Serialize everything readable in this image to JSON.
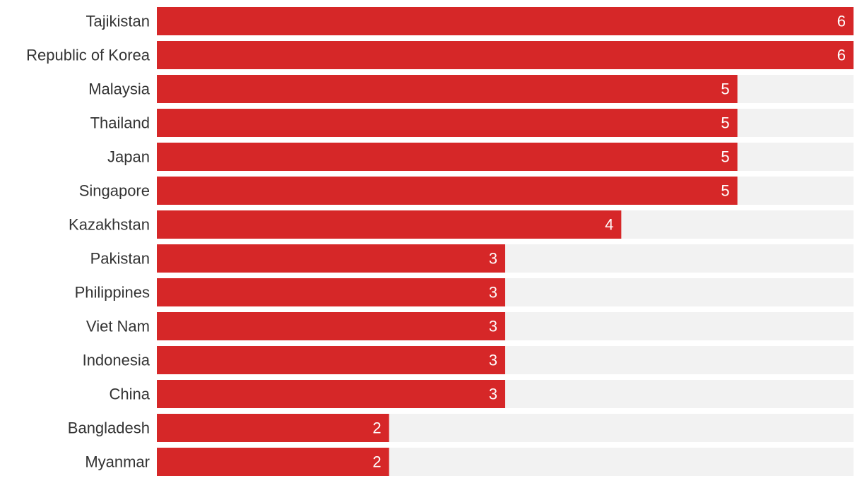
{
  "chart_data": {
    "type": "bar",
    "orientation": "horizontal",
    "categories": [
      "Tajikistan",
      "Republic of Korea",
      "Malaysia",
      "Thailand",
      "Japan",
      "Singapore",
      "Kazakhstan",
      "Pakistan",
      "Philippines",
      "Viet Nam",
      "Indonesia",
      "China",
      "Bangladesh",
      "Myanmar"
    ],
    "values": [
      6,
      6,
      5,
      5,
      5,
      5,
      4,
      3,
      3,
      3,
      3,
      3,
      2,
      2
    ],
    "xlim": [
      0,
      6
    ],
    "title": "",
    "xlabel": "",
    "ylabel": "",
    "grid": false,
    "legend": "none",
    "data_labels": "inside-end"
  },
  "colors": {
    "bar": "#d62728",
    "track": "#f2f2f2",
    "category_text": "#333333",
    "value_text": "#ffffff"
  }
}
